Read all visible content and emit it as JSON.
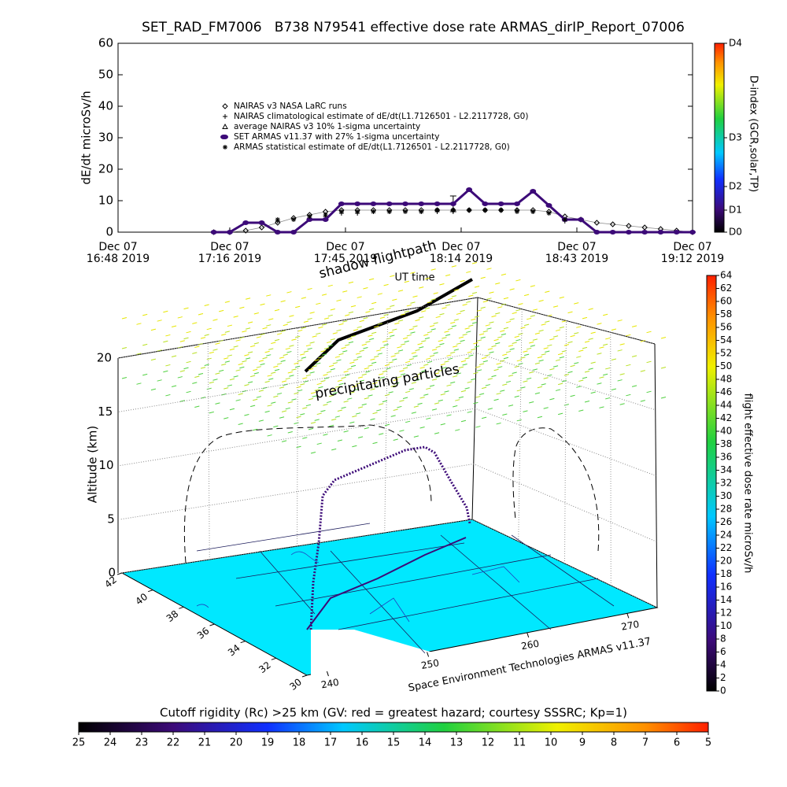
{
  "chart_data": [
    {
      "type": "line",
      "title": "SET_RAD_FM7006   B738 N79541 effective dose rate ARMAS_dirIP_Report_07006",
      "ylabel": "dE/dt microSv/h",
      "xlabel": "UT time",
      "x": [
        "2019-12-07 16:48",
        "2019-12-07 16:52",
        "2019-12-07 16:56",
        "2019-12-07 17:00",
        "2019-12-07 17:04",
        "2019-12-07 17:08",
        "2019-12-07 17:12",
        "2019-12-07 17:16",
        "2019-12-07 17:20",
        "2019-12-07 17:24",
        "2019-12-07 17:28",
        "2019-12-07 17:32",
        "2019-12-07 17:36",
        "2019-12-07 17:40",
        "2019-12-07 17:44",
        "2019-12-07 17:48",
        "2019-12-07 17:52",
        "2019-12-07 17:56",
        "2019-12-07 18:00",
        "2019-12-07 18:04",
        "2019-12-07 18:08",
        "2019-12-07 18:12",
        "2019-12-07 18:16",
        "2019-12-07 18:20",
        "2019-12-07 18:24",
        "2019-12-07 18:28",
        "2019-12-07 18:32",
        "2019-12-07 18:36",
        "2019-12-07 18:40",
        "2019-12-07 18:44",
        "2019-12-07 18:48",
        "2019-12-07 18:52",
        "2019-12-07 18:56",
        "2019-12-07 19:00",
        "2019-12-07 19:04",
        "2019-12-07 19:08",
        "2019-12-07 19:12"
      ],
      "xlim": [
        "2019-12-07 16:48",
        "2019-12-07 19:12"
      ],
      "xticks": [
        {
          "value": "2019-12-07 16:48",
          "label": [
            "Dec 07",
            "16:48 2019"
          ]
        },
        {
          "value": "2019-12-07 17:16",
          "label": [
            "Dec 07",
            "17:16 2019"
          ]
        },
        {
          "value": "2019-12-07 17:45",
          "label": [
            "Dec 07",
            "17:45 2019"
          ]
        },
        {
          "value": "2019-12-07 18:14",
          "label": [
            "Dec 07",
            "18:14 2019"
          ]
        },
        {
          "value": "2019-12-07 18:43",
          "label": [
            "Dec 07",
            "18:43 2019"
          ]
        },
        {
          "value": "2019-12-07 19:12",
          "label": [
            "Dec 07",
            "19:12 2019"
          ]
        }
      ],
      "ylim": [
        0,
        60
      ],
      "yticks": [
        0,
        10,
        20,
        30,
        40,
        50,
        60
      ],
      "series": [
        {
          "name": "NAIRAS v3 NASA LaRC runs",
          "color": "#000000",
          "marker": "diamond",
          "values": [
            null,
            null,
            null,
            null,
            null,
            null,
            0,
            0,
            0.5,
            1.5,
            3,
            4.5,
            5.5,
            6.5,
            7,
            7,
            7,
            7,
            7,
            7,
            7,
            7,
            7,
            7,
            7,
            7,
            7,
            6.5,
            5,
            4,
            3,
            2.5,
            2,
            1.5,
            1,
            0.5,
            0
          ]
        },
        {
          "name": "NAIRAS climatological estimate of dE/dt(L1.7126501 - L2.2117728, G0)",
          "color": "#000000",
          "marker": "plus",
          "values": [
            null,
            null,
            null,
            null,
            null,
            null,
            null,
            null,
            null,
            null,
            3.5,
            4,
            4.5,
            5,
            6,
            6,
            6.5,
            6.5,
            6.5,
            6.5,
            6.5,
            6.5,
            7,
            7,
            7,
            7,
            6.5,
            6,
            3.5,
            null,
            null,
            null,
            null,
            null,
            null,
            null,
            null
          ]
        },
        {
          "name": "average NAIRAS v3 10% 1-sigma uncertainty",
          "color": "#000000",
          "marker": "triangle",
          "x": [
            "2019-12-07 18:12"
          ],
          "values": [
            9
          ],
          "errors": [
            2.5
          ]
        },
        {
          "name": "SET ARMAS v11.37 with 27% 1-sigma uncertainty",
          "color": "#3c0a78",
          "marker": "circle",
          "values": [
            null,
            null,
            null,
            null,
            null,
            null,
            0,
            0,
            3,
            3,
            0,
            0,
            4,
            4,
            9,
            9,
            9,
            9,
            9,
            9,
            9,
            9,
            13.5,
            9,
            9,
            9,
            13,
            8.5,
            4,
            4,
            0,
            0,
            0,
            0,
            0,
            0,
            0
          ]
        },
        {
          "name": "ARMAS statistical estimate of dE/dt(L1.7126501 - L2.2117728, G0)",
          "color": "#000000",
          "marker": "asterisk",
          "values": [
            null,
            null,
            null,
            null,
            null,
            null,
            null,
            null,
            null,
            null,
            4,
            4,
            5,
            5.5,
            6.5,
            6.5,
            6.5,
            6.5,
            6.5,
            6.5,
            7,
            7,
            7,
            7,
            7,
            6.5,
            6.5,
            6,
            4,
            null,
            null,
            null,
            null,
            null,
            null,
            null,
            null
          ]
        }
      ],
      "colorbar": {
        "label": "D-index (GCR,solar,TP)",
        "ticks": [
          {
            "value": 0,
            "label": "D0"
          },
          {
            "value": 7,
            "label": "D1"
          },
          {
            "value": 14.5,
            "label": "D2"
          },
          {
            "value": 30,
            "label": "D3"
          },
          {
            "value": 60,
            "label": "D4"
          }
        ]
      }
    },
    {
      "type": "3d",
      "zlabel": "Altitude (km)",
      "zlim": [
        0,
        20
      ],
      "zticks": [
        0,
        5,
        10,
        15,
        20
      ],
      "ylim": [
        42,
        30
      ],
      "yticks": [
        42,
        40,
        38,
        36,
        34,
        32,
        30
      ],
      "xlim": [
        238,
        273
      ],
      "xticks": [
        240,
        250,
        260,
        270
      ],
      "annotations": [
        "shadow flightpath",
        "precipitating particles",
        "Space Environment Technologies ARMAS v11.37"
      ],
      "colorbar": {
        "label": "flight effective dose rate microSv/h",
        "lim": [
          0,
          64
        ],
        "ticks": [
          0,
          2,
          4,
          6,
          8,
          10,
          12,
          14,
          16,
          18,
          20,
          22,
          24,
          26,
          28,
          30,
          32,
          34,
          36,
          38,
          40,
          42,
          44,
          46,
          48,
          50,
          52,
          54,
          56,
          58,
          60,
          62,
          64
        ]
      },
      "colorbar2": {
        "label": "Cutoff rigidity (Rc) >25 km (GV: red = greatest hazard; courtesy SSSRC; Kp=1)",
        "lim": [
          25,
          5
        ],
        "ticks": [
          25,
          24,
          23,
          22,
          21,
          20,
          19,
          18,
          17,
          16,
          15,
          14,
          13,
          12,
          11,
          10,
          9,
          8,
          7,
          6,
          5
        ]
      }
    }
  ]
}
